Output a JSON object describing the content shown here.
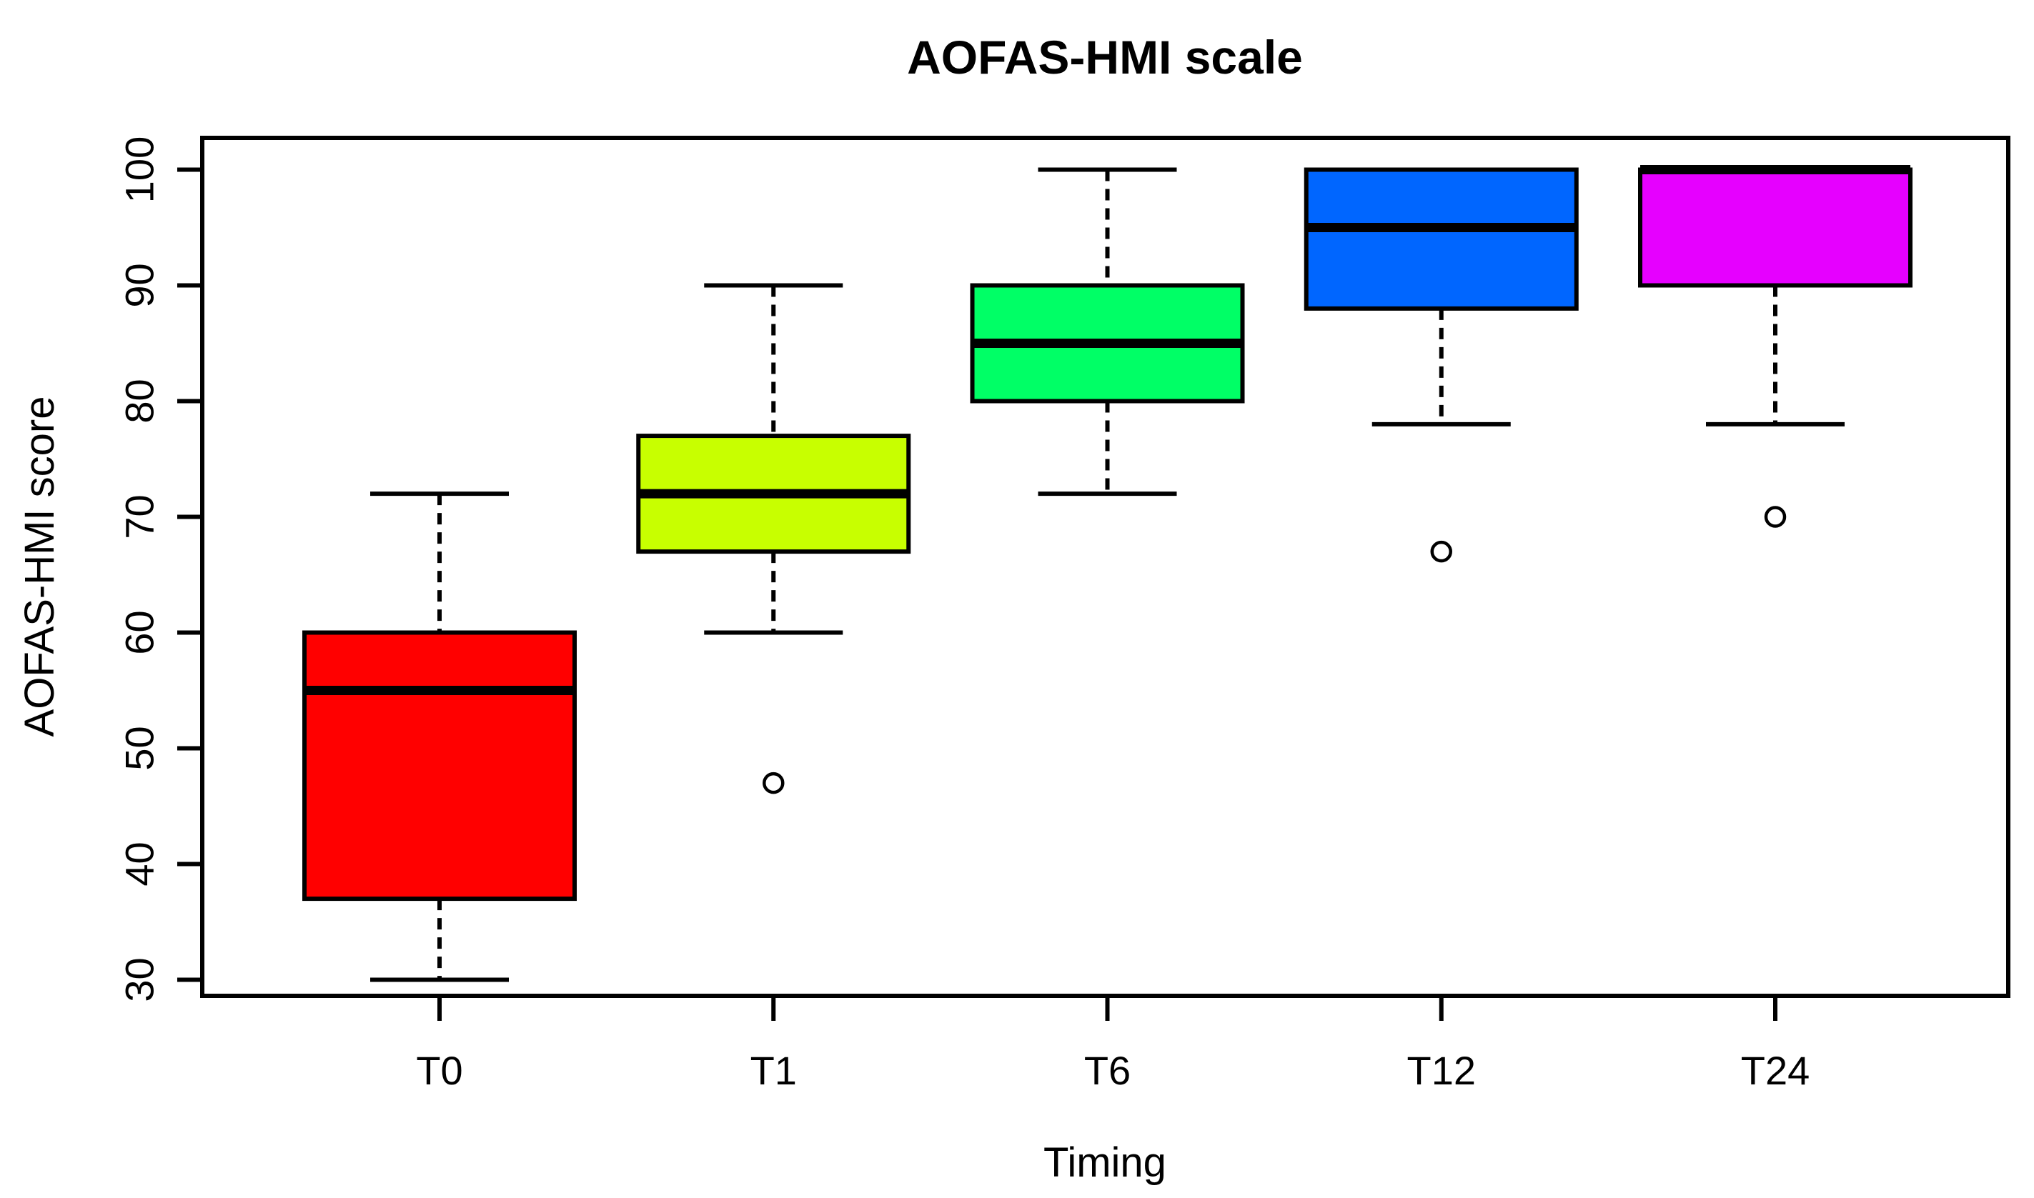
{
  "page": {
    "background_color": "#FFFFFF"
  },
  "chart_data": {
    "type": "boxplot",
    "title": "AOFAS-HMI scale",
    "xlabel": "Timing",
    "ylabel": "AOFAS-HMI score",
    "categories": [
      "T0",
      "T1",
      "T6",
      "T12",
      "T24"
    ],
    "y_ticks": [
      30,
      40,
      50,
      60,
      70,
      80,
      90,
      100
    ],
    "ylim": [
      27.2,
      102.8
    ],
    "grid": false,
    "legend": "none",
    "box_border_color": "#000000",
    "median_color": "#000000",
    "whisker_style": "dashed",
    "series": [
      {
        "category": "T0",
        "color": "#FF0000",
        "whisker_low": 30,
        "q1": 37,
        "median": 55,
        "q3": 60,
        "whisker_high": 72,
        "outliers": []
      },
      {
        "category": "T1",
        "color": "#C8FF00",
        "whisker_low": 60,
        "q1": 67,
        "median": 72,
        "q3": 77,
        "whisker_high": 90,
        "outliers": [
          47
        ]
      },
      {
        "category": "T6",
        "color": "#00FF66",
        "whisker_low": 72,
        "q1": 80,
        "median": 85,
        "q3": 90,
        "whisker_high": 100,
        "outliers": []
      },
      {
        "category": "T12",
        "color": "#0066FF",
        "whisker_low": 78,
        "q1": 88,
        "median": 95,
        "q3": 100,
        "whisker_high": 100,
        "outliers": [
          67
        ]
      },
      {
        "category": "T24",
        "color": "#E600FF",
        "whisker_low": 78,
        "q1": 90,
        "median": 100,
        "q3": 100,
        "whisker_high": 100,
        "outliers": [
          70
        ]
      }
    ]
  }
}
